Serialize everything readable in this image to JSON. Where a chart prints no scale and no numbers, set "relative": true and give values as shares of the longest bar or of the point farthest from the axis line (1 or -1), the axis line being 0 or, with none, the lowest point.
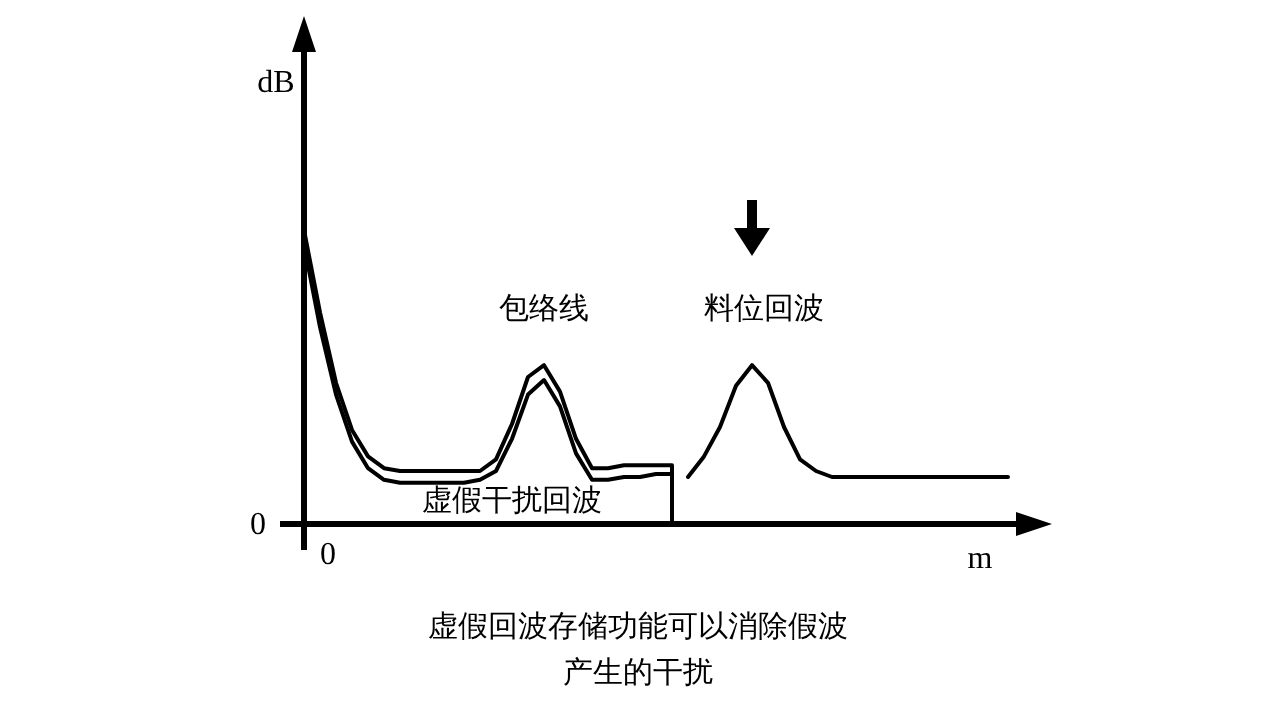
{
  "chart_data": {
    "type": "line",
    "relative": true,
    "xlabel": "m",
    "ylabel": "dB",
    "categories": [
      null,
      null,
      null,
      null,
      null,
      null,
      null,
      null,
      null,
      null,
      null,
      null,
      null,
      null,
      null,
      null,
      null,
      null,
      null,
      null,
      null,
      null,
      null,
      null,
      null,
      null,
      null,
      null,
      null,
      null,
      null,
      null,
      null,
      null,
      null,
      null,
      null,
      null,
      null,
      null,
      null,
      null,
      null,
      null,
      null,
      null
    ],
    "series": [
      {
        "color": "#000000",
        "values": [
          1,
          0.72,
          0.48,
          0.32,
          0.23,
          0.19,
          0.18,
          0.18,
          0.18,
          0.18,
          0.18,
          0.18,
          0.22,
          0.34,
          0.5,
          0.54,
          0.45,
          0.29,
          0.19,
          0.19,
          0.2,
          0.2,
          0.2,
          0.2,
          null,
          null,
          null,
          null,
          null,
          null,
          null,
          null,
          null,
          null,
          null,
          null,
          null,
          null,
          null,
          null,
          null,
          null,
          null,
          null,
          null,
          null
        ]
      },
      {
        "color": "#000000",
        "values": [
          0.95,
          0.67,
          0.44,
          0.28,
          0.19,
          0.15,
          0.14,
          0.14,
          0.14,
          0.14,
          0.14,
          0.15,
          0.18,
          0.29,
          0.44,
          0.49,
          0.4,
          0.24,
          0.15,
          0.15,
          0.16,
          0.16,
          0.17,
          0.17,
          null,
          null,
          null,
          null,
          null,
          null,
          null,
          null,
          null,
          null,
          null,
          null,
          null,
          null,
          null,
          null,
          null,
          null,
          null,
          null,
          null,
          null
        ]
      },
      {
        "color": "#000000",
        "values": [
          null,
          null,
          null,
          null,
          null,
          null,
          null,
          null,
          null,
          null,
          null,
          null,
          null,
          null,
          null,
          null,
          null,
          null,
          null,
          null,
          null,
          null,
          null,
          null,
          0.16,
          0.23,
          0.33,
          0.47,
          0.54,
          0.48,
          0.33,
          0.22,
          0.18,
          0.16,
          0.16,
          0.16,
          0.16,
          0.16,
          0.16,
          0.16,
          0.16,
          0.16,
          0.16,
          0.16,
          0.16,
          null
        ]
      }
    ],
    "annotations": [
      "包络线",
      "料位回波",
      "虚假干扰回波",
      "0",
      "0",
      "虚假回波存储功能可以消除假波产生的干扰"
    ]
  }
}
